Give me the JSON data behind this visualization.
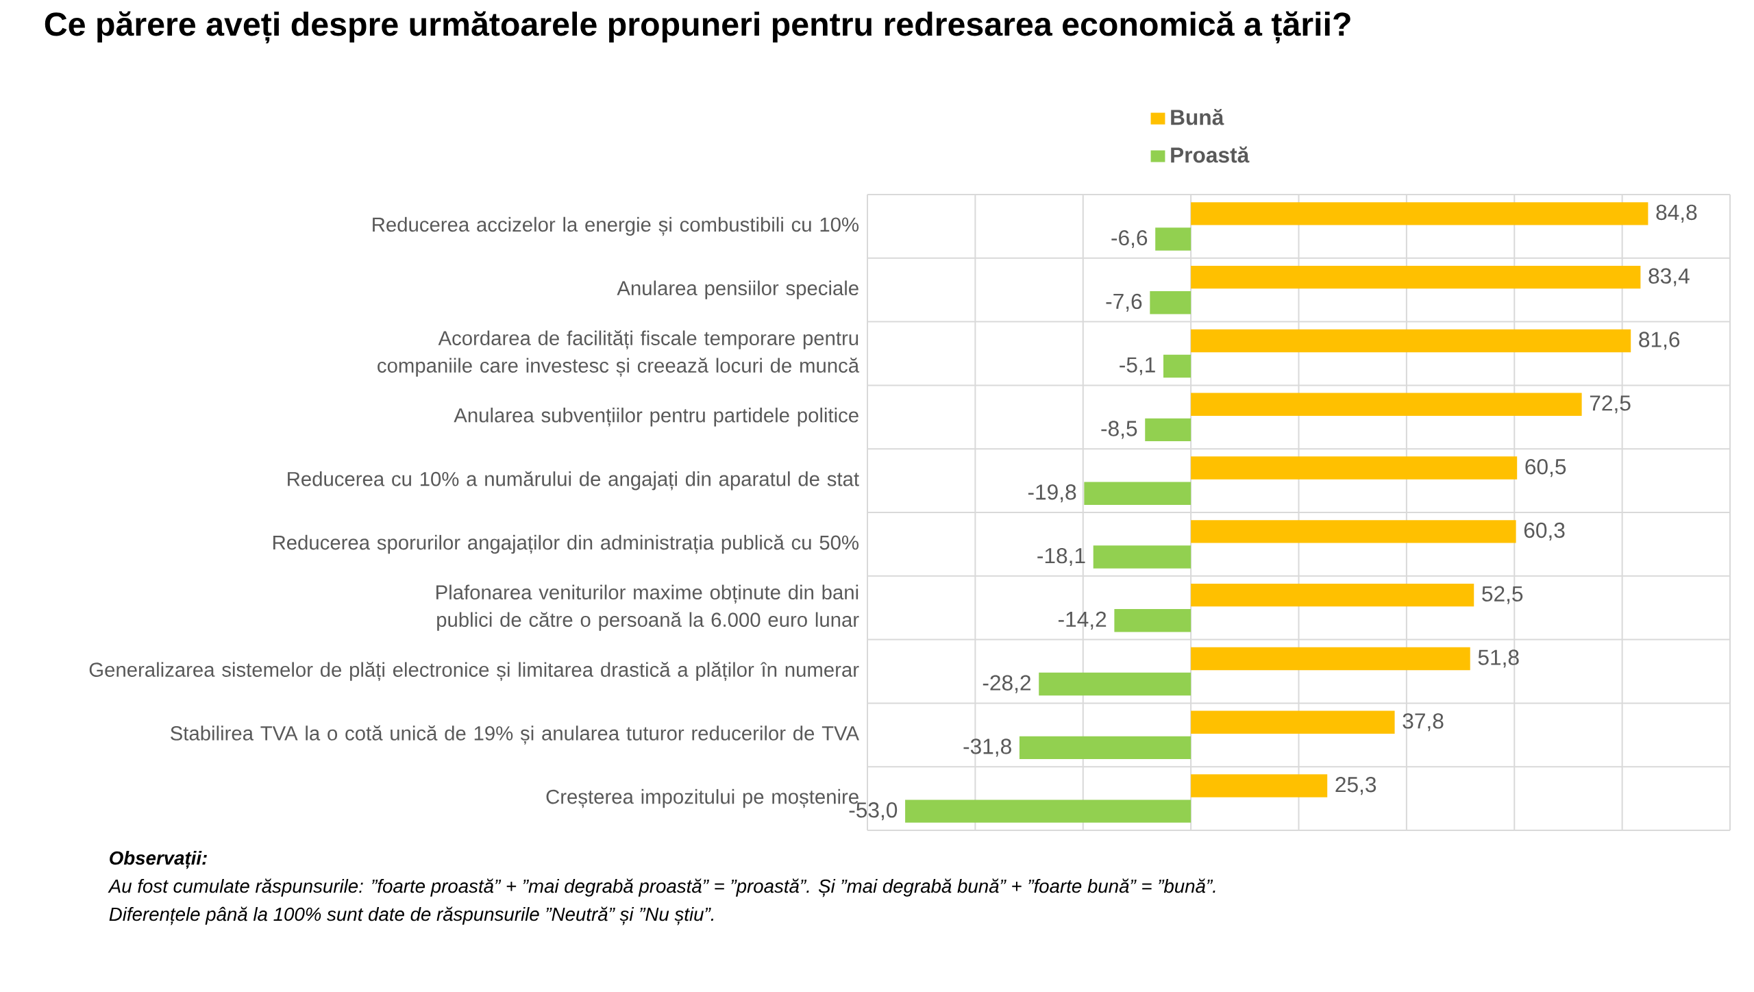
{
  "chart_data": {
    "type": "bar",
    "orientation": "horizontal",
    "title": "Ce părere aveți despre următoarele propuneri pentru redresarea economică a țării?",
    "categories": [
      "Reducerea accizelor la energie și combustibili cu 10%",
      "Anularea pensiilor speciale",
      "Acordarea de facilități fiscale temporare pentru companiile care investesc și creează locuri de muncă",
      "Anularea subvențiilor pentru partidele politice",
      "Reducerea cu 10% a numărului de angajați din aparatul de stat",
      "Reducerea sporurilor angajaților din administrația publică cu 50%",
      "Plafonarea veniturilor maxime obținute din bani publici de către o persoană la 6.000 euro lunar",
      "Generalizarea sistemelor de plăți electronice și limitarea drastică a plăților în numerar",
      "Stabilirea TVA la o cotă unică de 19% și anularea tuturor reducerilor de TVA",
      "Creșterea impozitului pe moștenire"
    ],
    "series": [
      {
        "name": "Bună",
        "color": "#ffc000",
        "values": [
          84.8,
          83.4,
          81.6,
          72.5,
          60.5,
          60.3,
          52.5,
          51.8,
          37.8,
          25.3
        ],
        "value_labels": [
          "84,8",
          "83,4",
          "81,6",
          "72,5",
          "60,5",
          "60,3",
          "52,5",
          "51,8",
          "37,8",
          "25,3"
        ]
      },
      {
        "name": "Proastă",
        "color": "#92d050",
        "values": [
          -6.6,
          -7.6,
          -5.1,
          -8.5,
          -19.8,
          -18.1,
          -14.2,
          -28.2,
          -31.8,
          -53.0
        ],
        "value_labels": [
          "-6,6",
          "-7,6",
          "-5,1",
          "-8,5",
          "-19,8",
          "-18,1",
          "-14,2",
          "-28,2",
          "-31,8",
          "-53,0"
        ]
      }
    ],
    "xlim": [
      -60,
      100
    ],
    "xticks": [
      {
        "value": -60,
        "label": null
      },
      {
        "value": -40,
        "label": null
      },
      {
        "value": -20,
        "label": null
      },
      {
        "value": 0,
        "label": null
      },
      {
        "value": 20,
        "label": null
      },
      {
        "value": 40,
        "label": null
      },
      {
        "value": 60,
        "label": null
      },
      {
        "value": 80,
        "label": null
      },
      {
        "value": 100,
        "label": null
      }
    ],
    "grid": true,
    "legend": "top",
    "tick_labels": "y",
    "annotations": [
      "Observații:",
      "Au fost cumulate răspunsurile: ”foarte proastă” + ”mai degrabă proastă” = ”proastă”. Și ”mai degrabă bună” + ”foarte bună” = ”bună”.",
      "Diferențele până la 100% sunt date de răspunsurile ”Neutră” și ”Nu știu”."
    ]
  }
}
